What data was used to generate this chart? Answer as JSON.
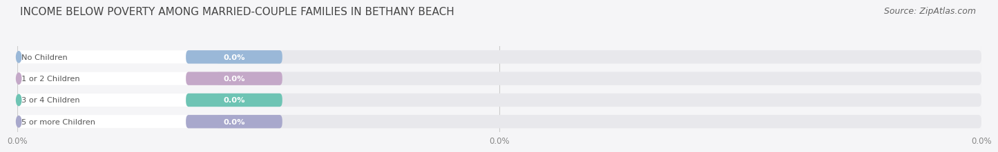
{
  "title": "INCOME BELOW POVERTY AMONG MARRIED-COUPLE FAMILIES IN BETHANY BEACH",
  "source": "Source: ZipAtlas.com",
  "categories": [
    "No Children",
    "1 or 2 Children",
    "3 or 4 Children",
    "5 or more Children"
  ],
  "values": [
    0.0,
    0.0,
    0.0,
    0.0
  ],
  "bar_colors": [
    "#9ab8d8",
    "#c4a8c8",
    "#6ec4b4",
    "#a8a8cc"
  ],
  "bar_bg_color": "#e8e8ec",
  "white_pill_color": "#ffffff",
  "value_label": "0.0%",
  "xlim": [
    0,
    100
  ],
  "background_color": "#f5f5f7",
  "title_fontsize": 11,
  "source_fontsize": 9,
  "xtick_labels": [
    "0.0%",
    "0.0%",
    "0.0%"
  ],
  "grid_color": "#cccccc",
  "bar_height": 0.62,
  "text_color": "#555555",
  "value_color_on_bar": "#ffffff",
  "rounding": 0.28
}
